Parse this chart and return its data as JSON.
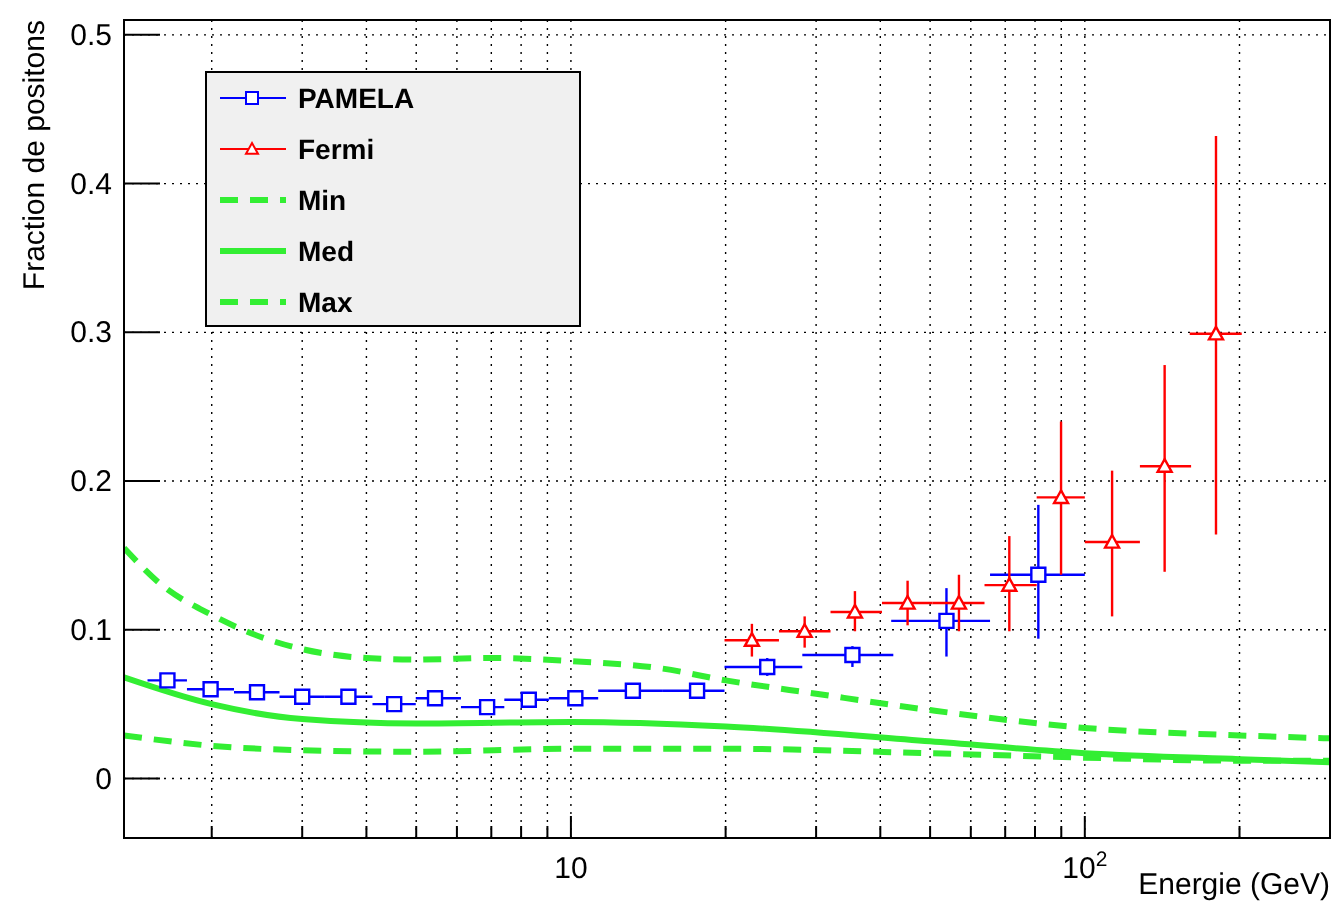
{
  "chart_data": {
    "type": "scatter",
    "xlabel": "Energie (GeV)",
    "ylabel": "Fraction de positons",
    "log": "x",
    "grid": true,
    "legend": "top left",
    "xlim": [
      1.35,
      300
    ],
    "ylim": [
      -0.04,
      0.51
    ],
    "xticks": [
      {
        "value": 2,
        "label": null
      },
      {
        "value": 3,
        "label": null
      },
      {
        "value": 4,
        "label": null
      },
      {
        "value": 5,
        "label": null
      },
      {
        "value": 6,
        "label": null
      },
      {
        "value": 7,
        "label": null
      },
      {
        "value": 8,
        "label": null
      },
      {
        "value": 9,
        "label": null
      },
      10,
      {
        "value": 20,
        "label": null
      },
      {
        "value": 30,
        "label": null
      },
      {
        "value": 40,
        "label": null
      },
      {
        "value": 50,
        "label": null
      },
      {
        "value": 60,
        "label": null
      },
      {
        "value": 70,
        "label": null
      },
      {
        "value": 80,
        "label": null
      },
      {
        "value": 90,
        "label": null
      },
      {
        "value": 100,
        "label": "10$^{2}$"
      },
      {
        "value": 200,
        "label": null
      },
      {
        "value": 300,
        "label": null
      }
    ],
    "yticks": [
      0,
      0.1,
      0.2,
      0.3,
      0.4,
      0.5
    ],
    "series": [
      {
        "name": "PAMELA",
        "marker": "square",
        "color": "#0000ff",
        "x": [
          1.64,
          1.99,
          2.45,
          3.0,
          3.69,
          4.53,
          5.44,
          6.87,
          8.28,
          10.2,
          13.2,
          17.6,
          24.1,
          35.3,
          53.8,
          81.2
        ],
        "values": [
          0.066,
          0.06,
          0.058,
          0.055,
          0.055,
          0.05,
          0.054,
          0.048,
          0.053,
          0.054,
          0.059,
          0.059,
          0.075,
          0.083,
          0.106,
          0.137
        ],
        "xerrors": [
          [
            1.5,
            1.79
          ],
          [
            1.79,
            2.21
          ],
          [
            2.21,
            2.71
          ],
          [
            2.71,
            3.31
          ],
          [
            3.31,
            4.11
          ],
          [
            4.11,
            4.99
          ],
          [
            4.99,
            6.11
          ],
          [
            6.11,
            7.42
          ],
          [
            7.42,
            9.06
          ],
          [
            9.06,
            11.3
          ],
          [
            11.3,
            15.1
          ],
          [
            15.1,
            19.9
          ],
          [
            19.9,
            28.2
          ],
          [
            28.2,
            42.4
          ],
          [
            42.0,
            65.4
          ],
          [
            65.4,
            100
          ]
        ],
        "errors": [
          null,
          null,
          null,
          null,
          null,
          null,
          null,
          null,
          null,
          null,
          null,
          null,
          [
            0.069,
            0.081
          ],
          [
            0.075,
            0.089
          ],
          [
            0.082,
            0.128
          ],
          [
            0.094,
            0.184
          ]
        ]
      },
      {
        "name": "Fermi",
        "marker": "triangle",
        "color": "#ff0000",
        "x": [
          22.5,
          28.5,
          35.7,
          45.2,
          56.9,
          71.3,
          89.9,
          113,
          143,
          180
        ],
        "values": [
          0.093,
          0.099,
          0.112,
          0.118,
          0.118,
          0.13,
          0.189,
          0.159,
          0.21,
          0.299
        ],
        "xerrors": [
          [
            19.9,
            25.4
          ],
          [
            25.4,
            32.0
          ],
          [
            32.0,
            40.3
          ],
          [
            40.3,
            50.5
          ],
          [
            50.5,
            63.8
          ],
          [
            63.8,
            80.6
          ],
          [
            80.6,
            100
          ],
          [
            100,
            128
          ],
          [
            128,
            161
          ],
          [
            160,
            202
          ]
        ],
        "errors": [
          [
            0.082,
            0.104
          ],
          [
            0.088,
            0.109
          ],
          [
            0.099,
            0.126
          ],
          [
            0.103,
            0.133
          ],
          [
            0.099,
            0.137
          ],
          [
            0.099,
            0.163
          ],
          [
            0.137,
            0.24
          ],
          [
            0.109,
            0.207
          ],
          [
            0.139,
            0.278
          ],
          [
            0.164,
            0.432
          ]
        ]
      },
      {
        "name": "Min",
        "type": "line",
        "line_style": "dashed",
        "color": "#33ee33",
        "x": [
          1.35,
          1.6,
          2,
          2.5,
          3,
          4,
          5,
          7,
          10,
          15,
          20,
          30,
          50,
          100,
          200,
          300
        ],
        "values": [
          0.155,
          0.13,
          0.11,
          0.095,
          0.087,
          0.081,
          0.08,
          0.081,
          0.079,
          0.074,
          0.066,
          0.057,
          0.046,
          0.034,
          0.029,
          0.027
        ]
      },
      {
        "name": "Med",
        "type": "line",
        "line_style": "solid",
        "color": "#33ee33",
        "x": [
          1.35,
          2,
          3,
          5,
          10,
          20,
          50,
          100,
          200,
          300
        ],
        "values": [
          0.068,
          0.05,
          0.04,
          0.037,
          0.038,
          0.035,
          0.025,
          0.017,
          0.013,
          0.011
        ]
      },
      {
        "name": "Max",
        "type": "line",
        "line_style": "dashed",
        "color": "#33ee33",
        "x": [
          1.35,
          2,
          3,
          5,
          10,
          20,
          50,
          100,
          200,
          300
        ],
        "values": [
          0.029,
          0.022,
          0.019,
          0.018,
          0.02,
          0.02,
          0.017,
          0.014,
          0.012,
          0.012
        ]
      }
    ]
  }
}
